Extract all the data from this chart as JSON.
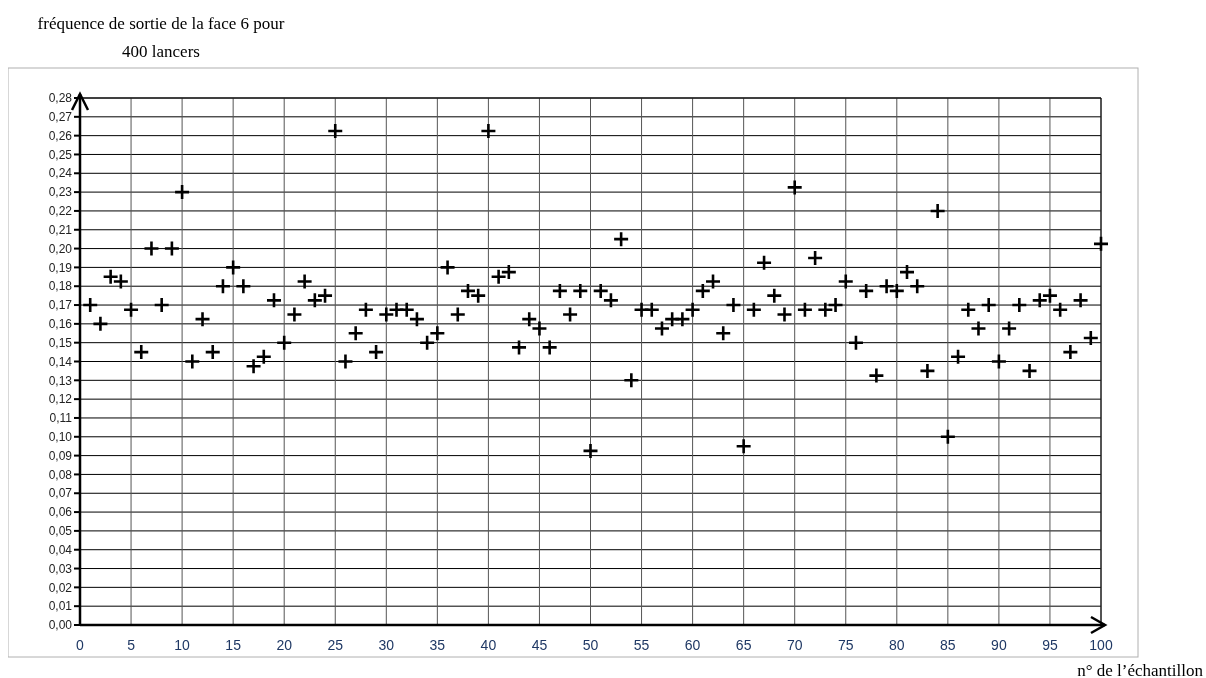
{
  "chart_data": {
    "type": "scatter",
    "ylabel": "fréquence de sortie de la face 6 pour 400 lancers",
    "xlabel": "n° de l’échantillon",
    "marker": "cross",
    "grid": true,
    "x": [
      1,
      2,
      3,
      4,
      5,
      6,
      7,
      8,
      9,
      10,
      11,
      12,
      13,
      14,
      15,
      16,
      17,
      18,
      19,
      20,
      21,
      22,
      23,
      24,
      25,
      26,
      27,
      28,
      29,
      30,
      31,
      32,
      33,
      34,
      35,
      36,
      37,
      38,
      39,
      40,
      41,
      42,
      43,
      44,
      45,
      46,
      47,
      48,
      49,
      50,
      51,
      52,
      53,
      54,
      55,
      56,
      57,
      58,
      59,
      60,
      61,
      62,
      63,
      64,
      65,
      66,
      67,
      68,
      69,
      70,
      71,
      72,
      73,
      74,
      75,
      76,
      77,
      78,
      79,
      80,
      81,
      82,
      83,
      84,
      85,
      86,
      87,
      88,
      89,
      90,
      91,
      92,
      93,
      94,
      95,
      96,
      97,
      98,
      99,
      100
    ],
    "series": [
      {
        "color": "#000000",
        "values": [
          0.17,
          0.16,
          0.185,
          0.1825,
          0.1675,
          0.145,
          0.2,
          0.17,
          0.2,
          0.23,
          0.14,
          0.1625,
          0.145,
          0.18,
          0.19,
          0.18,
          0.1375,
          0.1425,
          0.1725,
          0.15,
          0.165,
          0.1825,
          0.1725,
          0.175,
          0.2625,
          0.14,
          0.155,
          0.1675,
          0.145,
          0.165,
          0.1675,
          0.1675,
          0.1625,
          0.15,
          0.155,
          0.19,
          0.165,
          0.1775,
          0.175,
          0.2625,
          0.185,
          0.1875,
          0.1475,
          0.1625,
          0.1575,
          0.1475,
          0.1775,
          0.165,
          0.1775,
          0.0925,
          0.1775,
          0.1725,
          0.205,
          0.13,
          0.1675,
          0.1675,
          0.1575,
          0.1625,
          0.1625,
          0.1675,
          0.1775,
          0.1825,
          0.155,
          0.17,
          0.095,
          0.1675,
          0.1925,
          0.175,
          0.165,
          0.2325,
          0.1675,
          0.195,
          0.1675,
          0.17,
          0.1825,
          0.15,
          0.1775,
          0.1325,
          0.18,
          0.1775,
          0.1875,
          0.18,
          0.135,
          0.22,
          0.1,
          0.1425,
          0.1675,
          0.1575,
          0.17,
          0.14,
          0.1575,
          0.17,
          0.135,
          0.1725,
          0.175,
          0.1675,
          0.145,
          0.1725,
          0.1525,
          0.2025
        ]
      }
    ],
    "xlim": [
      0,
      100
    ],
    "xticks": [
      0,
      5,
      10,
      15,
      20,
      25,
      30,
      35,
      40,
      45,
      50,
      55,
      60,
      65,
      70,
      75,
      80,
      85,
      90,
      95,
      100
    ],
    "ylim": [
      0,
      0.28
    ],
    "yticks": [
      {
        "value": 0,
        "label": "0,00"
      },
      {
        "value": 0.01,
        "label": "0,01"
      },
      {
        "value": 0.02,
        "label": "0,02"
      },
      {
        "value": 0.03,
        "label": "0,03"
      },
      {
        "value": 0.04,
        "label": "0,04"
      },
      {
        "value": 0.05,
        "label": "0,05"
      },
      {
        "value": 0.06,
        "label": "0,06"
      },
      {
        "value": 0.07,
        "label": "0,07"
      },
      {
        "value": 0.08,
        "label": "0,08"
      },
      {
        "value": 0.09,
        "label": "0,09"
      },
      {
        "value": 0.1,
        "label": "0,10"
      },
      {
        "value": 0.11,
        "label": "0,11"
      },
      {
        "value": 0.12,
        "label": "0,12"
      },
      {
        "value": 0.13,
        "label": "0,13"
      },
      {
        "value": 0.14,
        "label": "0,14"
      },
      {
        "value": 0.15,
        "label": "0,15"
      },
      {
        "value": 0.16,
        "label": "0,16"
      },
      {
        "value": 0.17,
        "label": "0,17"
      },
      {
        "value": 0.18,
        "label": "0,18"
      },
      {
        "value": 0.19,
        "label": "0,19"
      },
      {
        "value": 0.2,
        "label": "0,20"
      },
      {
        "value": 0.21,
        "label": "0,21"
      },
      {
        "value": 0.22,
        "label": "0,22"
      },
      {
        "value": 0.23,
        "label": "0,23"
      },
      {
        "value": 0.24,
        "label": "0,24"
      },
      {
        "value": 0.25,
        "label": "0,25"
      },
      {
        "value": 0.26,
        "label": "0,26"
      },
      {
        "value": 0.27,
        "label": "0,27"
      },
      {
        "value": 0.28,
        "label": "0,28"
      }
    ]
  }
}
